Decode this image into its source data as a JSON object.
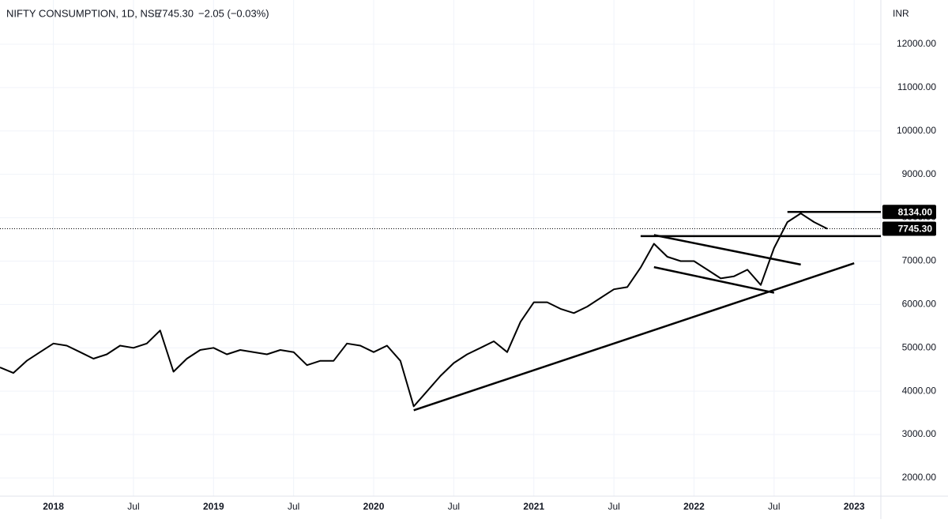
{
  "chart_data": {
    "type": "line",
    "title": "NIFTY CONSUMPTION, 1D, NSE",
    "last_label": "7745.30",
    "change": "−2.05 (−0.03%)",
    "currency": "INR",
    "x": [
      "2017-09",
      "2017-10",
      "2017-11",
      "2017-12",
      "2018-01",
      "2018-02",
      "2018-03",
      "2018-04",
      "2018-05",
      "2018-06",
      "2018-07",
      "2018-08",
      "2018-09",
      "2018-10",
      "2018-11",
      "2018-12",
      "2019-01",
      "2019-02",
      "2019-03",
      "2019-04",
      "2019-05",
      "2019-06",
      "2019-07",
      "2019-08",
      "2019-09",
      "2019-10",
      "2019-11",
      "2019-12",
      "2020-01",
      "2020-02",
      "2020-03",
      "2020-04",
      "2020-05",
      "2020-06",
      "2020-07",
      "2020-08",
      "2020-09",
      "2020-10",
      "2020-11",
      "2020-12",
      "2021-01",
      "2021-02",
      "2021-03",
      "2021-04",
      "2021-05",
      "2021-06",
      "2021-07",
      "2021-08",
      "2021-09",
      "2021-10",
      "2021-11",
      "2021-12",
      "2022-01",
      "2022-02",
      "2022-03",
      "2022-04",
      "2022-05",
      "2022-06",
      "2022-07",
      "2022-08",
      "2022-09",
      "2022-10",
      "2022-11"
    ],
    "series": [
      {
        "name": "NIFTY CONSUMPTION",
        "color": "#000000",
        "values": [
          4550,
          4420,
          4700,
          4900,
          5100,
          5050,
          4900,
          4750,
          4850,
          5050,
          5000,
          5100,
          5400,
          4450,
          4750,
          4950,
          5000,
          4850,
          4950,
          4900,
          4850,
          4950,
          4900,
          4600,
          4700,
          4700,
          5100,
          5050,
          4900,
          5050,
          4700,
          3650,
          4000,
          4350,
          4650,
          4850,
          5000,
          5150,
          4900,
          5600,
          6050,
          6050,
          5900,
          5800,
          5950,
          6150,
          6350,
          6400,
          6850,
          7400,
          7100,
          7000,
          7000,
          6800,
          6600,
          6650,
          6800,
          6450,
          7300,
          7900,
          8100,
          7900,
          7745.3
        ]
      }
    ],
    "price_lines": [
      {
        "start": "2022-08",
        "value": 8134,
        "label": "8134.00"
      },
      {
        "start": "2021-09",
        "value": 7575.05
      }
    ],
    "trendlines": [
      {
        "from": [
          "2020-04",
          3560
        ],
        "to": [
          "2023-01",
          6950
        ]
      },
      {
        "from": [
          "2021-10",
          7600
        ],
        "to": [
          "2022-09",
          6920
        ]
      },
      {
        "from": [
          "2021-10",
          6860
        ],
        "to": [
          "2022-07",
          6270
        ]
      }
    ],
    "xlim": [
      "2017-09",
      "2023-03"
    ],
    "xticks": [
      {
        "value": "2018-01",
        "label": "2018"
      },
      {
        "value": "2018-07",
        "label": "Jul"
      },
      {
        "value": "2019-01",
        "label": "2019"
      },
      {
        "value": "2019-07",
        "label": "Jul"
      },
      {
        "value": "2020-01",
        "label": "2020"
      },
      {
        "value": "2020-07",
        "label": "Jul"
      },
      {
        "value": "2021-01",
        "label": "2021"
      },
      {
        "value": "2021-07",
        "label": "Jul"
      },
      {
        "value": "2022-01",
        "label": "2022"
      },
      {
        "value": "2022-07",
        "label": "Jul"
      },
      {
        "value": "2023-01",
        "label": "2023"
      }
    ],
    "ylim": [
      1580,
      13020
    ],
    "yticks": [
      {
        "value": 2000,
        "label": "2000.00"
      },
      {
        "value": 3000,
        "label": "3000.00"
      },
      {
        "value": 4000,
        "label": "4000.00"
      },
      {
        "value": 5000,
        "label": "5000.00"
      },
      {
        "value": 6000,
        "label": "6000.00"
      },
      {
        "value": 7000,
        "label": "7000.00"
      },
      {
        "value": 8000,
        "label": "8000.00"
      },
      {
        "value": 9000,
        "label": "9000.00"
      },
      {
        "value": 10000,
        "label": "10000.00"
      },
      {
        "value": 11000,
        "label": "11000.00"
      },
      {
        "value": 12000,
        "label": "12000.00"
      }
    ],
    "grid": true
  }
}
